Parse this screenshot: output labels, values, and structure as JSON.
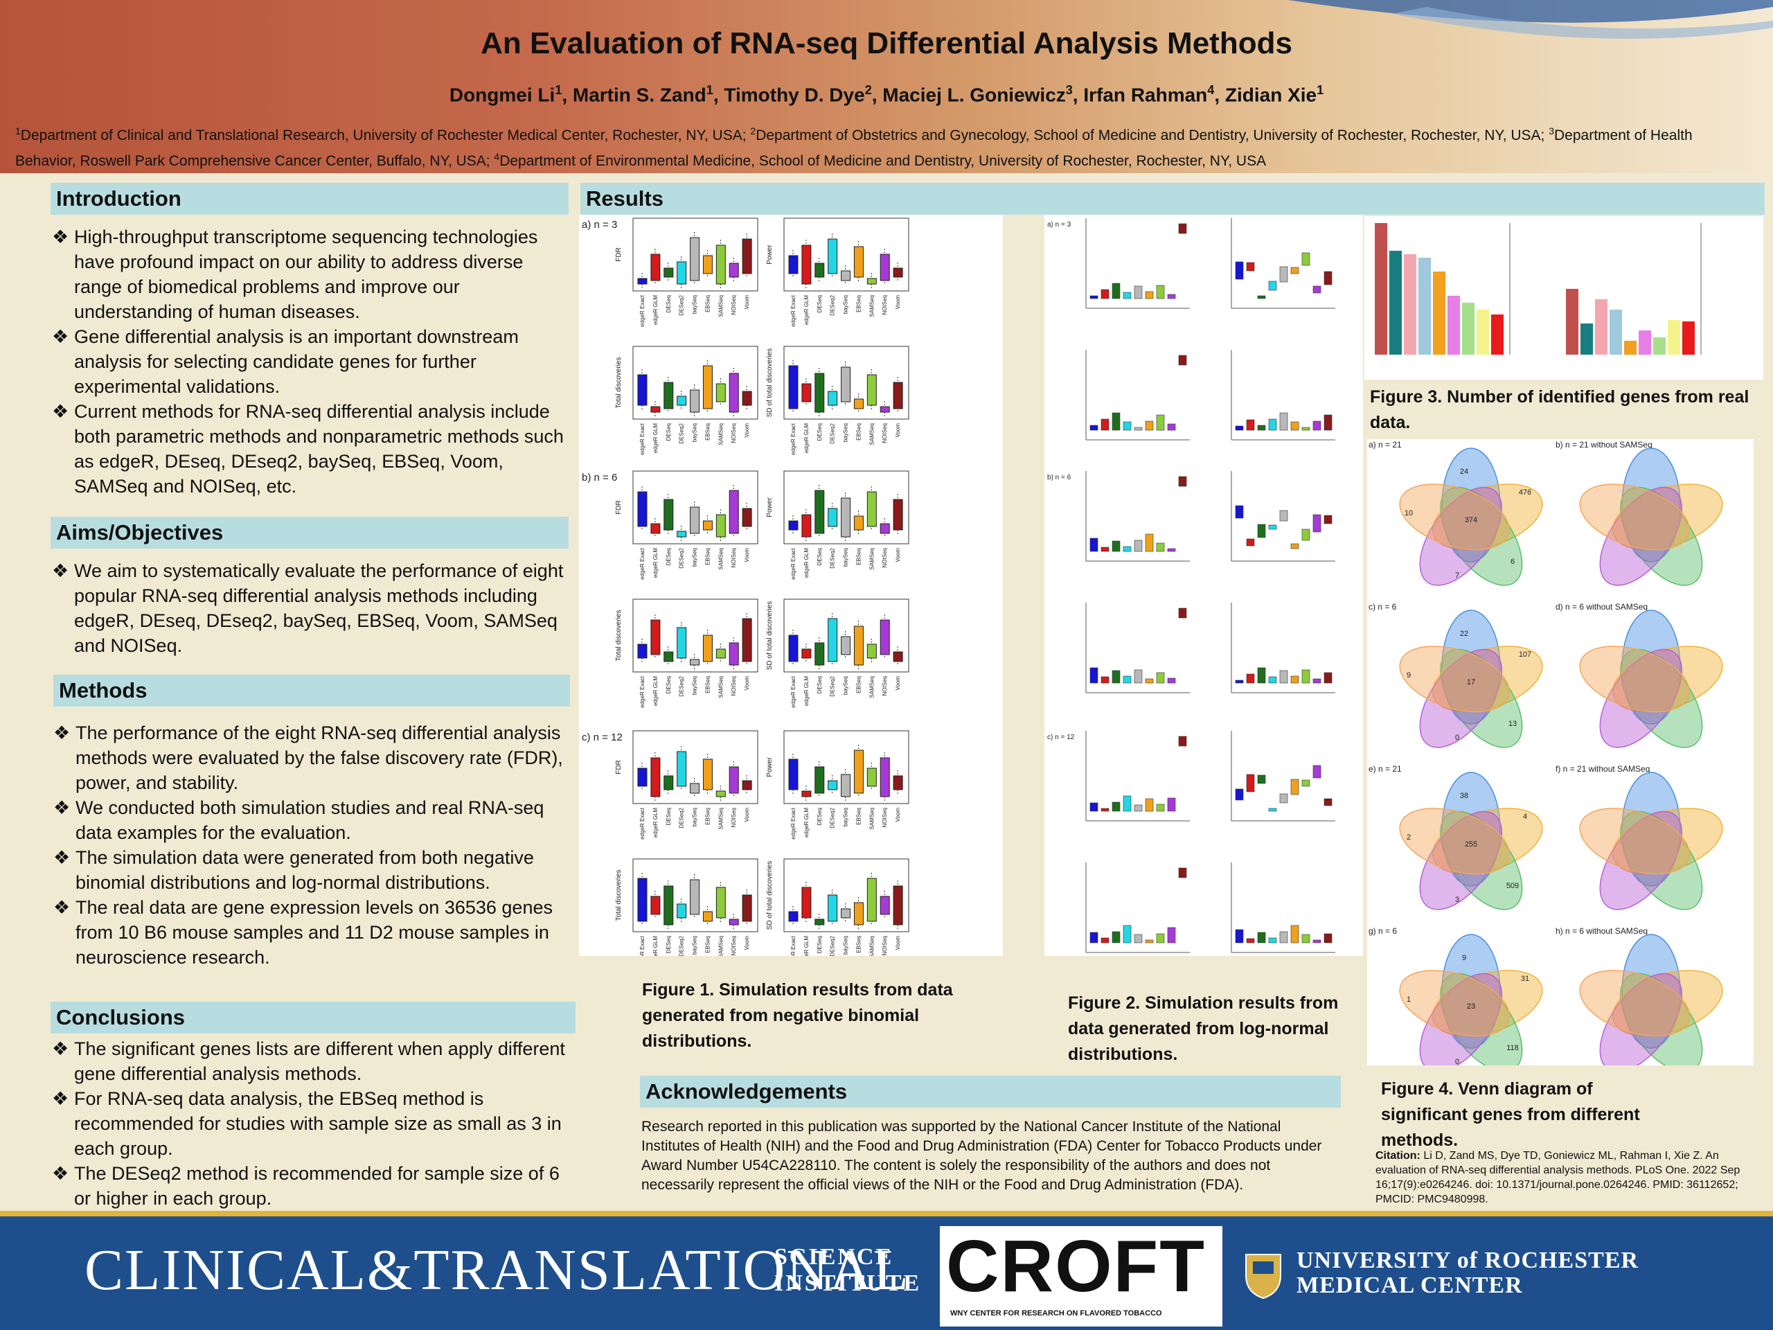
{
  "header": {
    "title": "An Evaluation of RNA-seq Differential Analysis Methods",
    "authors": [
      {
        "name": "Dongmei Li",
        "sup": "1"
      },
      {
        "name": "Martin S. Zand",
        "sup": "1"
      },
      {
        "name": "Timothy D. Dye",
        "sup": "2"
      },
      {
        "name": "Maciej L. Goniewicz",
        "sup": "3"
      },
      {
        "name": "Irfan Rahman",
        "sup": "4"
      },
      {
        "name": "Zidian Xie",
        "sup": "1"
      }
    ],
    "affiliations": [
      {
        "sup": "1",
        "text": "Department of Clinical and Translational Research, University of Rochester Medical Center, Rochester, NY, USA; "
      },
      {
        "sup": "2",
        "text": "Department of Obstetrics and Gynecology, School of Medicine and Dentistry, University of Rochester, Rochester, NY, USA; "
      },
      {
        "sup": "3",
        "text": "Department of Health Behavior, Roswell Park Comprehensive Cancer Center, Buffalo, NY, USA; "
      },
      {
        "sup": "4",
        "text": "Department of Environmental Medicine, School of Medicine and Dentistry, University of Rochester, Rochester, NY, USA"
      }
    ]
  },
  "introduction": {
    "heading": "Introduction",
    "bullets": [
      "High-throughput transcriptome sequencing technologies have profound impact on our ability to address diverse range of biomedical problems and improve our understanding of human diseases.",
      "Gene differential analysis is an important downstream analysis for selecting candidate genes for further experimental validations.",
      "Current methods for RNA-seq differential analysis include both parametric methods and nonparametric methods such as edgeR, DEseq, DEseq2, baySeq, EBSeq, Voom, SAMSeq and NOISeq, etc."
    ]
  },
  "aims": {
    "heading": "Aims/Objectives",
    "bullets": [
      "We aim to systematically evaluate the performance of eight popular RNA-seq differential analysis methods including edgeR, DEseq, DEseq2, baySeq, EBSeq, Voom, SAMSeq and NOISeq."
    ]
  },
  "methods": {
    "heading": "Methods",
    "bullets": [
      "The performance of the eight RNA-seq differential analysis methods were evaluated by the false discovery rate (FDR), power, and stability.",
      "We conducted both simulation studies and real RNA-seq data examples for the evaluation.",
      "The simulation data were generated from both negative binomial distributions and log-normal distributions.",
      "The real data are gene expression levels on 36536 genes from 10 B6 mouse samples and 11 D2 mouse samples in neuroscience research."
    ]
  },
  "conclusions": {
    "heading": "Conclusions",
    "bullets": [
      "The significant genes lists are different when apply different gene differential analysis methods.",
      "For RNA-seq data analysis, the EBSeq method is recommended for studies with sample size as small as 3 in each group.",
      "The DESeq2 method is recommended for sample size of 6 or higher in each group."
    ]
  },
  "results": {
    "heading": "Results",
    "fig1_caption": "Figure 1. Simulation results from data generated from negative binomial distributions.",
    "fig2_caption": "Figure 2. Simulation results from data generated from log-normal distributions.",
    "fig3_caption": "Figure 3. Number of identified genes from real data.",
    "fig4_caption": "Figure 4. Venn diagram of significant genes from different methods.",
    "fig1_rows": [
      "a) n = 3",
      "b) n = 6",
      "c) n = 12"
    ],
    "fig1_ylabels": [
      "FDR",
      "Power",
      "Total discoveries",
      "SD of total discoveries"
    ],
    "fig2_rows": [
      "a) n = 3",
      "b) n = 6",
      "c) n = 12"
    ],
    "methods": [
      "edgeR Exact",
      "edgeR GLM",
      "DESeq",
      "DESeq2",
      "baySeq",
      "EBSeq",
      "SAMSeq",
      "NOISeq",
      "Voom"
    ],
    "venn_labels": [
      "a) n = 21",
      "b) n = 21 without SAMSeq",
      "c) n = 6",
      "d) n = 6 without SAMSeq",
      "e) n = 21",
      "f) n = 21 without SAMSeq",
      "g) n = 6",
      "h) n = 6 without SAMSeq"
    ],
    "venn_numbers": [
      "24",
      "476",
      "10",
      "374",
      "7",
      "6",
      "22",
      "107",
      "9",
      "17",
      "0",
      "13",
      "38",
      "4",
      "2",
      "255",
      "3",
      "509",
      "9",
      "31",
      "1",
      "23",
      "0",
      "118"
    ]
  },
  "acknowledgements": {
    "heading": "Acknowledgements",
    "text": "Research reported in this publication was supported by the National Cancer Institute of the National Institutes of Health (NIH) and the Food and Drug Administration (FDA) Center for Tobacco Products under Award Number U54CA228110. The content is solely the responsibility of the authors and does not necessarily represent the official views of the NIH or the Food and Drug Administration (FDA)."
  },
  "citation": {
    "label": "Citation:",
    "text": " Li D, Zand MS, Dye TD, Goniewicz ML, Rahman I, Xie Z. An evaluation of RNA-seq differential analysis methods. PLoS One. 2022 Sep 16;17(9):e0264246. doi: 10.1371/journal.pone.0264246. PMID: 36112652; PMCID: PMC9480998."
  },
  "footer": {
    "cts_main": "CLINICAL&TRANSLATIONAL",
    "cts_sub1": "SCIENCE",
    "cts_sub2": "INSTITUTE",
    "croft": "CROFT",
    "croft_sub": "WNY CENTER FOR RESEARCH ON FLAVORED TOBACCO",
    "ur_line1": "UNIVERSITY of ROCHESTER",
    "ur_line2": "MEDICAL CENTER"
  },
  "colors": {
    "section_head": "#b8dde0",
    "background": "#f1ead2",
    "footer": "#1e4f8c",
    "header_red": "#b5543a"
  }
}
